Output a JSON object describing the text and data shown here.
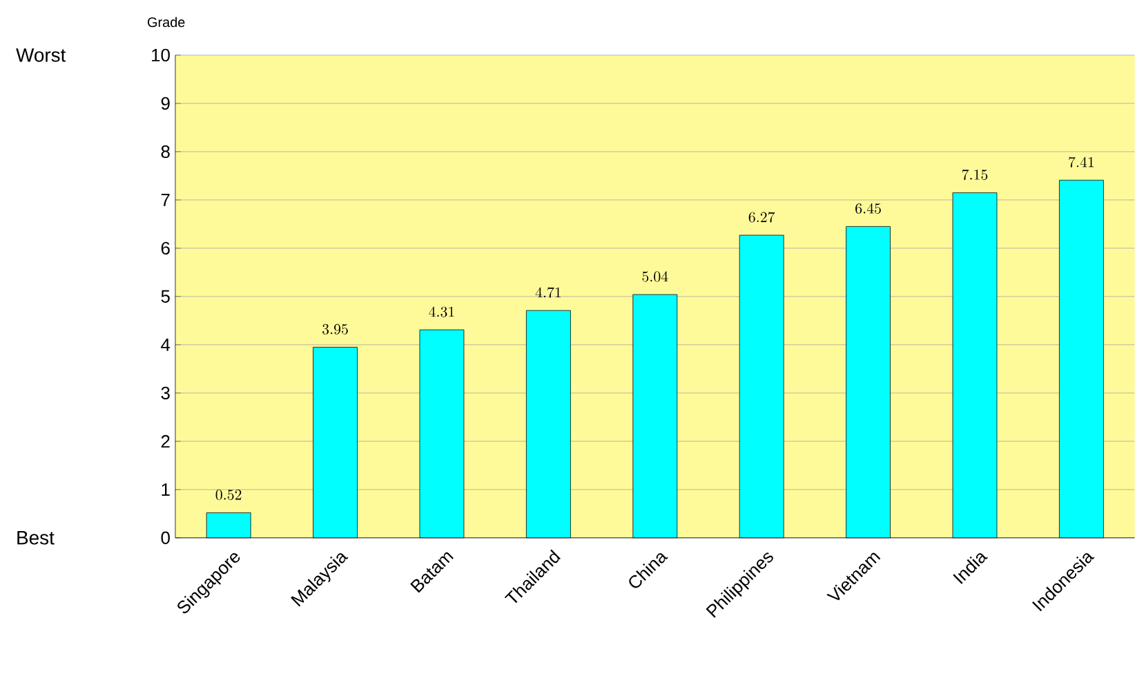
{
  "chart_data": {
    "type": "bar",
    "ylabel": "Grade",
    "categories": [
      "Singapore",
      "Malaysia",
      "Batam",
      "Thailand",
      "China",
      "Philippines",
      "Vietnam",
      "India",
      "Indonesia"
    ],
    "values": [
      0.52,
      3.95,
      4.31,
      4.71,
      5.04,
      6.27,
      6.45,
      7.15,
      7.41
    ],
    "color": "#00ffff",
    "ylim": [
      0,
      10
    ],
    "yticks": [
      0,
      1,
      2,
      3,
      4,
      5,
      6,
      7,
      8,
      9,
      10
    ],
    "grid": "y",
    "data_labels": true,
    "annotations": [
      "Worst",
      "Best"
    ]
  }
}
